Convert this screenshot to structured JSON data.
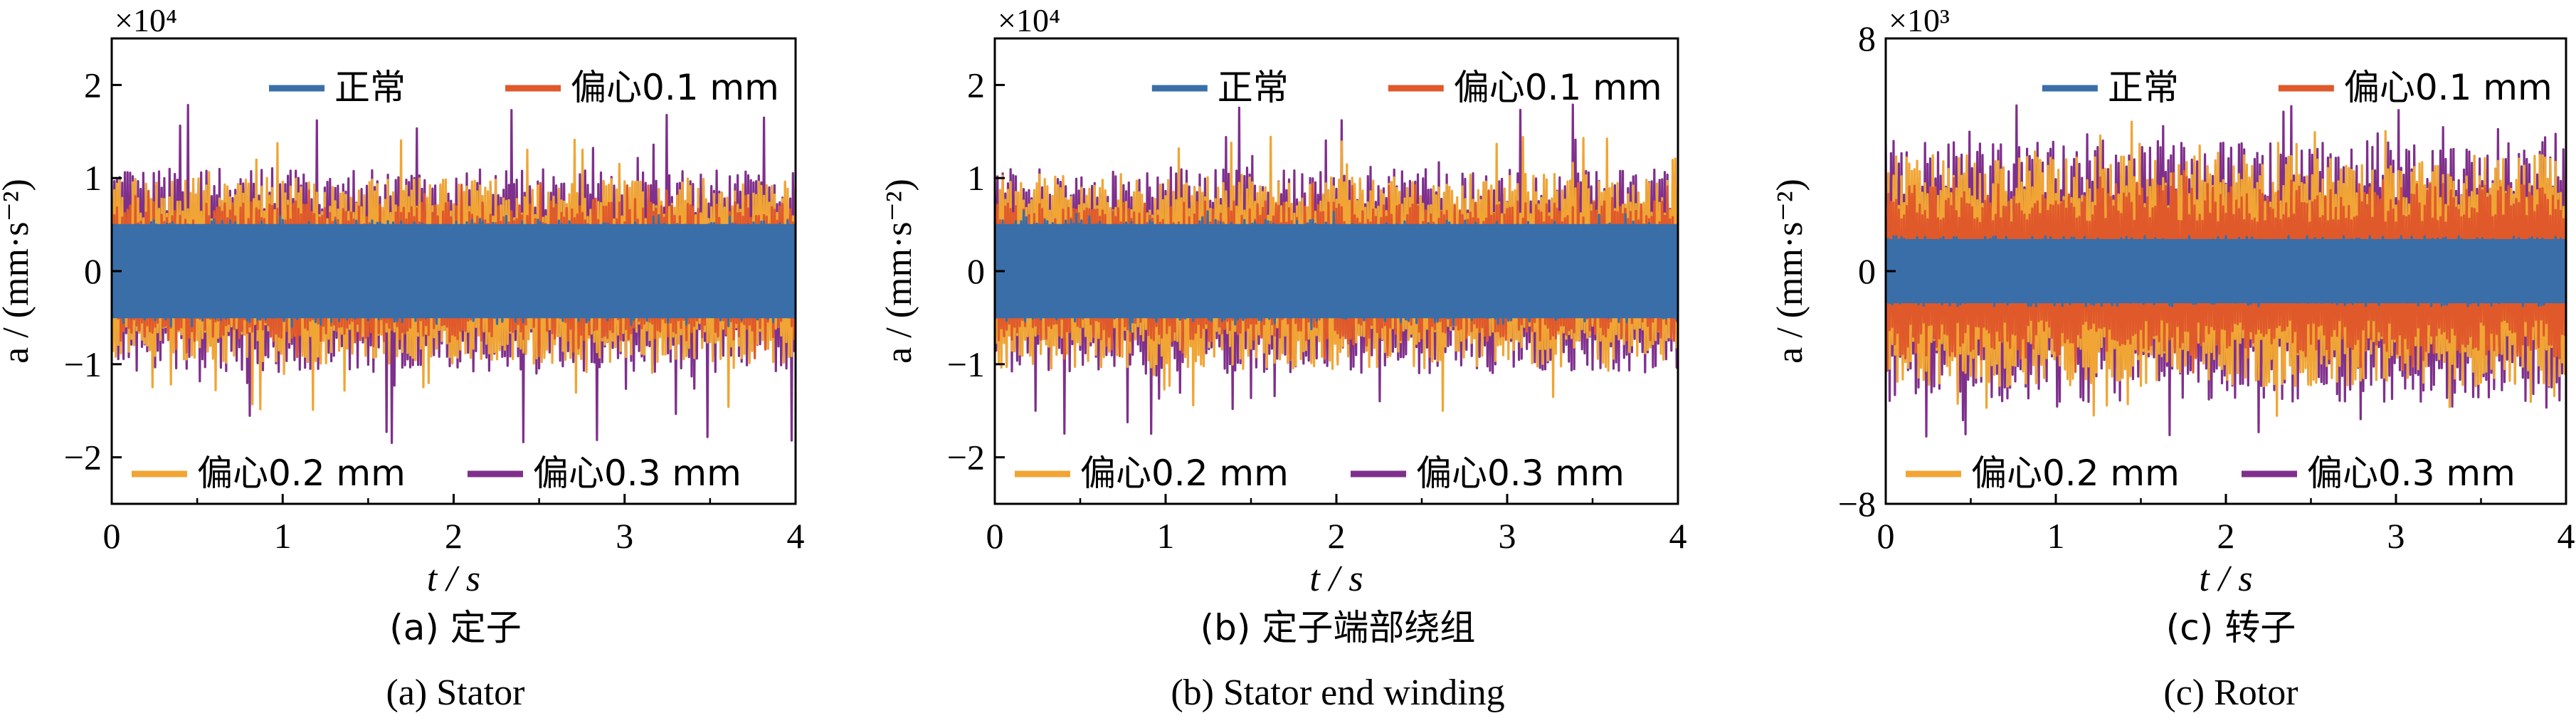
{
  "figure": {
    "colors": {
      "normal": "#3a6ea8",
      "ecc01": "#e0592b",
      "ecc02": "#f0a534",
      "ecc03": "#7f2f8c"
    },
    "captions": [
      {
        "cn": "(a)  定子",
        "en": "(a)  Stator"
      },
      {
        "cn": "(b)  定子端部绕组",
        "en": "(b)  Stator end winding"
      },
      {
        "cn": "(c)  转子",
        "en": "(c)  Rotor"
      }
    ]
  },
  "chart_data": [
    {
      "type": "line",
      "panel": "(a)",
      "xlabel": "t / s",
      "ylabel": "a / (mm·s⁻²)",
      "multiplier": "×10⁴",
      "xlim": [
        0,
        4
      ],
      "ylim": [
        -2.5,
        2.5
      ],
      "xticks": [
        "0",
        "1",
        "2",
        "3",
        "4"
      ],
      "yticks": [
        "−2",
        "−1",
        "0",
        "1",
        "2"
      ],
      "ytick_values": [
        -2,
        -1,
        0,
        1,
        2
      ],
      "legend_top": [
        "正常",
        "偏心0.1 mm"
      ],
      "legend_bottom": [
        "偏心0.2 mm",
        "偏心0.3 mm"
      ],
      "series": [
        {
          "name": "偏心0.3 mm",
          "envelope": 1.1,
          "peak": 1.85,
          "color": "#7f2f8c"
        },
        {
          "name": "偏心0.2 mm",
          "envelope": 1.0,
          "peak": 1.5,
          "color": "#f0a534"
        },
        {
          "name": "偏心0.1 mm",
          "envelope": 0.75,
          "peak": 0.95,
          "color": "#e0592b"
        },
        {
          "name": "正常",
          "envelope": 0.55,
          "peak": 0.6,
          "color": "#3a6ea8"
        }
      ]
    },
    {
      "type": "line",
      "panel": "(b)",
      "xlabel": "t / s",
      "ylabel": "a / (mm·s⁻²)",
      "multiplier": "×10⁴",
      "xlim": [
        0,
        4
      ],
      "ylim": [
        -2.5,
        2.5
      ],
      "xticks": [
        "0",
        "1",
        "2",
        "3",
        "4"
      ],
      "yticks": [
        "−2",
        "−1",
        "0",
        "1",
        "2"
      ],
      "ytick_values": [
        -2,
        -1,
        0,
        1,
        2
      ],
      "legend_top": [
        "正常",
        "偏心0.1 mm"
      ],
      "legend_bottom": [
        "偏心0.2 mm",
        "偏心0.3 mm"
      ],
      "series": [
        {
          "name": "偏心0.3 mm",
          "envelope": 1.1,
          "peak": 1.8,
          "color": "#7f2f8c"
        },
        {
          "name": "偏心0.2 mm",
          "envelope": 1.05,
          "peak": 1.5,
          "color": "#f0a534"
        },
        {
          "name": "偏心0.1 mm",
          "envelope": 0.75,
          "peak": 0.95,
          "color": "#e0592b"
        },
        {
          "name": "正常",
          "envelope": 0.55,
          "peak": 0.65,
          "color": "#3a6ea8"
        }
      ]
    },
    {
      "type": "line",
      "panel": "(c)",
      "xlabel": "t / s",
      "ylabel": "a / (mm·s⁻²)",
      "multiplier": "×10³",
      "xlim": [
        0,
        4
      ],
      "ylim": [
        -8,
        8
      ],
      "xticks": [
        "0",
        "1",
        "2",
        "3",
        "4"
      ],
      "yticks": [
        "−8",
        "0",
        "8"
      ],
      "ytick_values": [
        -8,
        0,
        8
      ],
      "legend_top": [
        "正常",
        "偏心0.1 mm"
      ],
      "legend_bottom": [
        "偏心0.2 mm",
        "偏心0.3 mm"
      ],
      "series": [
        {
          "name": "偏心0.3 mm",
          "envelope": 4.5,
          "peak": 5.8,
          "color": "#7f2f8c"
        },
        {
          "name": "偏心0.2 mm",
          "envelope": 4.0,
          "peak": 5.2,
          "color": "#f0a534"
        },
        {
          "name": "偏心0.1 mm",
          "envelope": 3.0,
          "peak": 3.6,
          "color": "#e0592b"
        },
        {
          "name": "正常",
          "envelope": 1.2,
          "peak": 1.2,
          "color": "#3a6ea8"
        }
      ]
    }
  ]
}
